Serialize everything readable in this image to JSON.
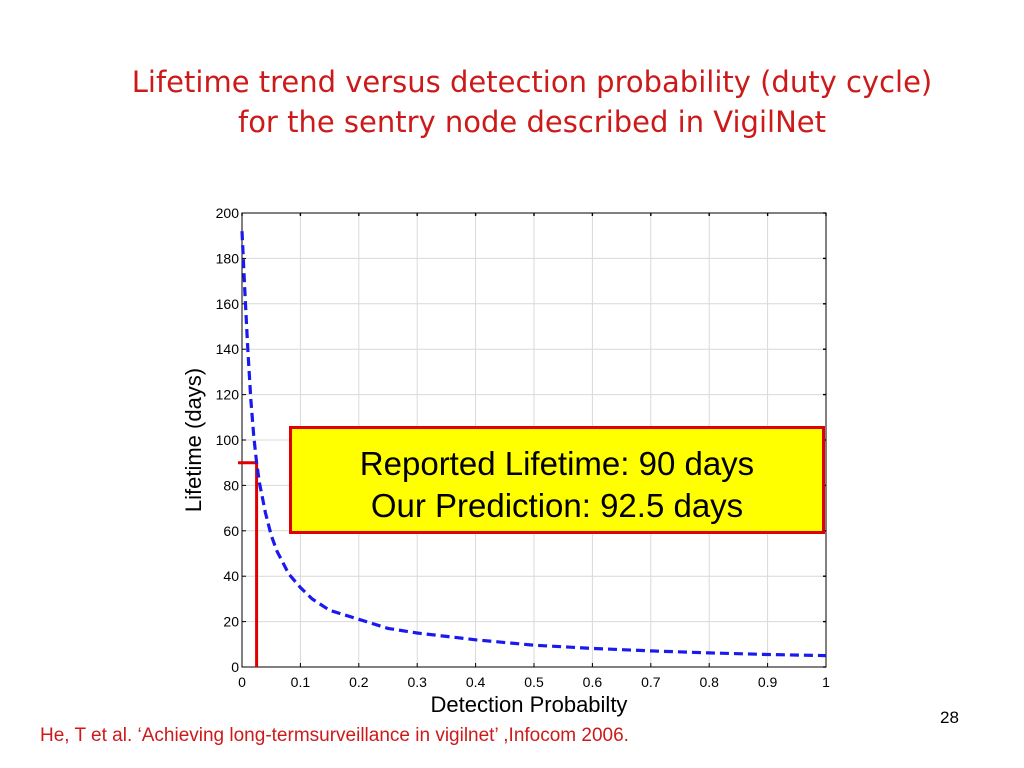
{
  "slide": {
    "title_line1": "Lifetime trend versus detection probability (duty cycle)",
    "title_line2": "for the sentry node described in VigilNet",
    "citation": "He, T et al.  ‘Achieving long-termsurveillance in vigilnet’ ,Infocom 2006.",
    "page_number": "28",
    "title_color": "#cc1a1a"
  },
  "callout": {
    "line1": "Reported Lifetime: 90 days",
    "line2": "Our Prediction: 92.5 days",
    "background": "#ffff00",
    "border_color": "#e00000"
  },
  "chart_data": {
    "type": "line",
    "xlabel": "Detection Probabilty",
    "ylabel": "Lifetime (days)",
    "xlim": [
      0,
      1
    ],
    "ylim": [
      0,
      200
    ],
    "x_ticks": [
      "0",
      "0.1",
      "0.2",
      "0.3",
      "0.4",
      "0.5",
      "0.6",
      "0.7",
      "0.8",
      "0.9",
      "1"
    ],
    "y_ticks": [
      "0",
      "20",
      "40",
      "60",
      "80",
      "100",
      "120",
      "140",
      "160",
      "180",
      "200"
    ],
    "grid": true,
    "series": [
      {
        "style": "dashed",
        "color": "#1a1aee",
        "x": [
          0.0,
          0.005,
          0.01,
          0.015,
          0.02,
          0.025,
          0.03,
          0.04,
          0.05,
          0.06,
          0.07,
          0.08,
          0.1,
          0.12,
          0.15,
          0.2,
          0.25,
          0.3,
          0.4,
          0.5,
          0.6,
          0.7,
          0.8,
          0.9,
          1.0
        ],
        "y": [
          192,
          165,
          140,
          118,
          102,
          90,
          81,
          68,
          58,
          51,
          46,
          41,
          35,
          30,
          25,
          21,
          17,
          15,
          12,
          9.6,
          8.2,
          7.1,
          6.2,
          5.5,
          5.0
        ]
      }
    ],
    "annotation": {
      "color": "#e00000",
      "x": 0.025,
      "y": 90
    }
  }
}
